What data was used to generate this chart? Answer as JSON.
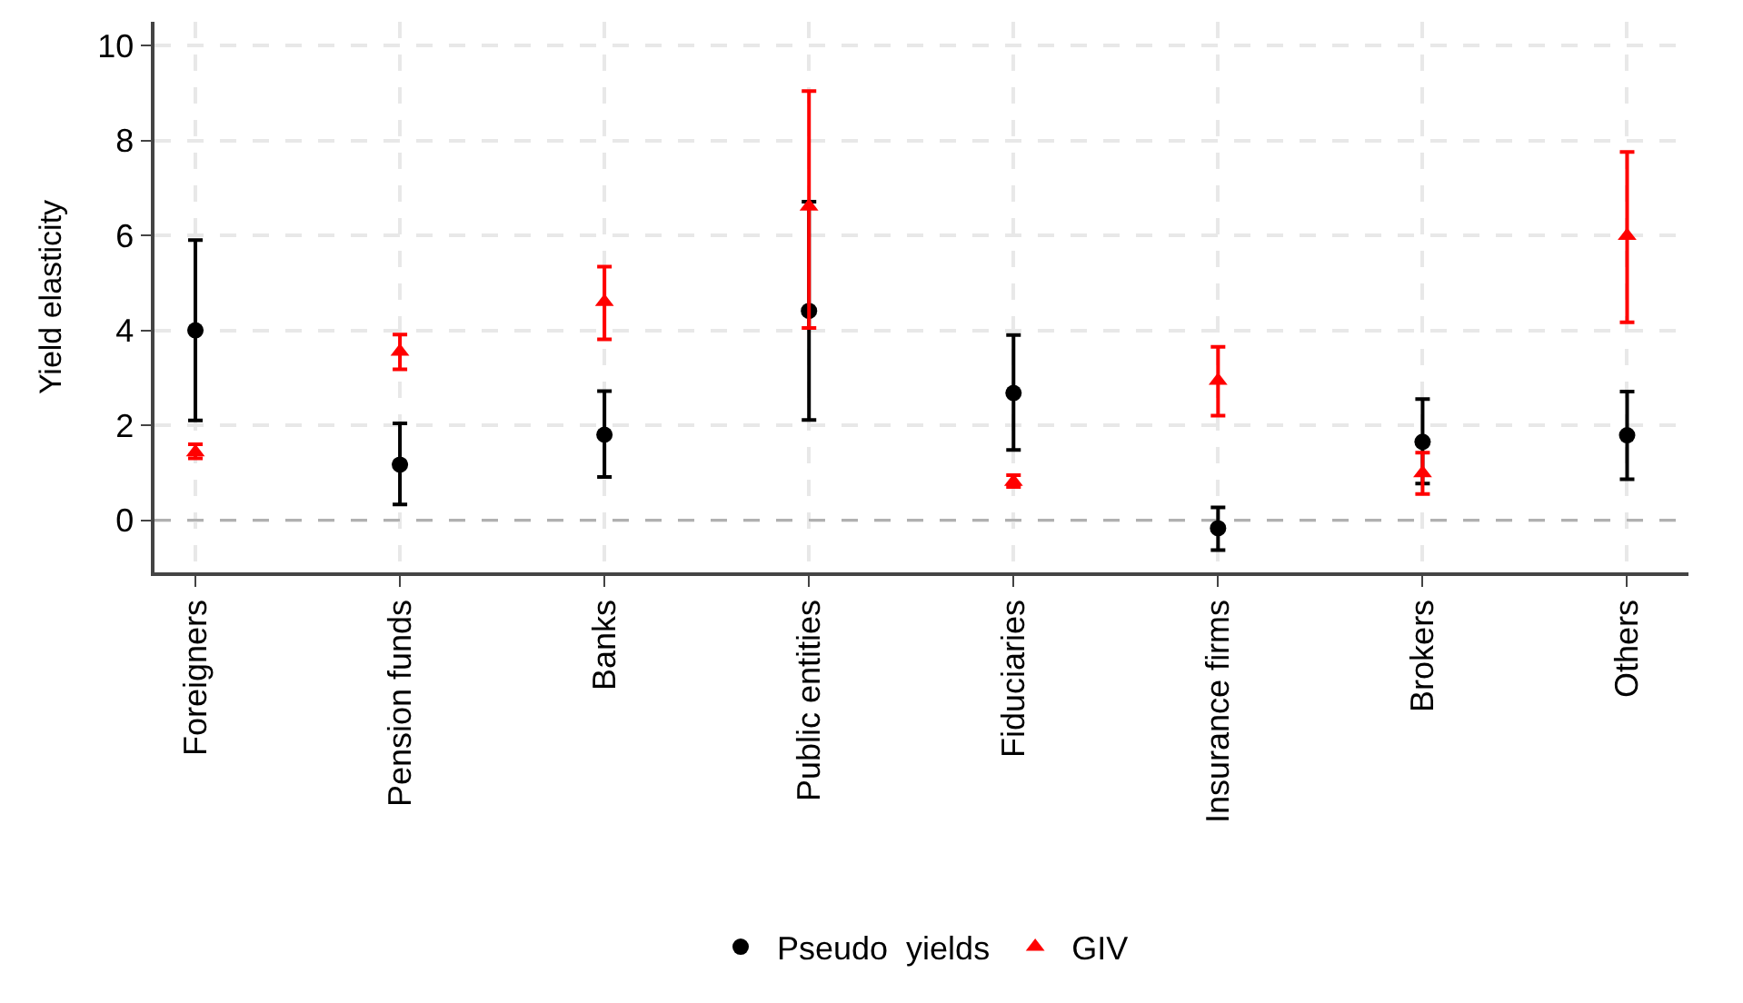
{
  "chart_data": {
    "type": "scatter",
    "ylabel": "Yield elasticity",
    "categories": [
      "Foreigners",
      "Pension funds",
      "Banks",
      "Public entities",
      "Fiduciaries",
      "Insurance firms",
      "Brokers",
      "Others"
    ],
    "series": [
      {
        "name": "Pseudo  yields",
        "color": "#000000",
        "marker": "circle",
        "values": [
          4.0,
          1.17,
          1.8,
          4.41,
          2.68,
          -0.17,
          1.65,
          1.79
        ],
        "errors": [
          [
            2.1,
            5.9
          ],
          [
            0.33,
            2.04
          ],
          [
            0.91,
            2.72
          ],
          [
            2.11,
            6.71
          ],
          [
            1.48,
            3.9
          ],
          [
            -0.63,
            0.27
          ],
          [
            0.77,
            2.55
          ],
          [
            0.86,
            2.71
          ]
        ]
      },
      {
        "name": "GIV",
        "color": "#ff0000",
        "marker": "triangle",
        "values": [
          1.43,
          3.55,
          4.6,
          6.61,
          0.81,
          2.94,
          0.99,
          5.99
        ],
        "errors": [
          [
            1.3,
            1.6
          ],
          [
            3.18,
            3.91
          ],
          [
            3.81,
            5.34
          ],
          [
            4.05,
            9.04
          ],
          [
            0.7,
            0.95
          ],
          [
            2.2,
            3.65
          ],
          [
            0.55,
            1.42
          ],
          [
            4.17,
            7.76
          ]
        ]
      }
    ],
    "ylim": [
      -1.1,
      10.5
    ],
    "yticks": [
      0,
      2,
      4,
      6,
      8,
      10
    ],
    "grid": true,
    "legend": "bottom",
    "ref_lines": [
      {
        "axis": "y",
        "value": 0,
        "color": "#b0b0b0",
        "line_style": "dashed"
      }
    ]
  }
}
